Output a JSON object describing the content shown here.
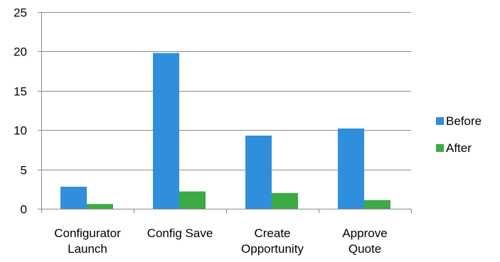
{
  "chart_data": {
    "type": "bar",
    "categories": [
      [
        "Configurator",
        "Launch"
      ],
      [
        "Config Save"
      ],
      [
        "Create",
        "Opportunity"
      ],
      [
        "Approve",
        "Quote"
      ]
    ],
    "series": [
      {
        "name": "Before",
        "color": "#2f8fdc",
        "values": [
          2.8,
          19.8,
          9.3,
          10.2
        ]
      },
      {
        "name": "After",
        "color": "#3caa45",
        "values": [
          0.6,
          2.2,
          2.0,
          1.1
        ]
      }
    ],
    "ylim": [
      0,
      25
    ],
    "yticks": [
      0,
      5,
      10,
      15,
      20,
      25
    ],
    "grid": true,
    "legend_position": "right",
    "title": "",
    "xlabel": "",
    "ylabel": ""
  }
}
